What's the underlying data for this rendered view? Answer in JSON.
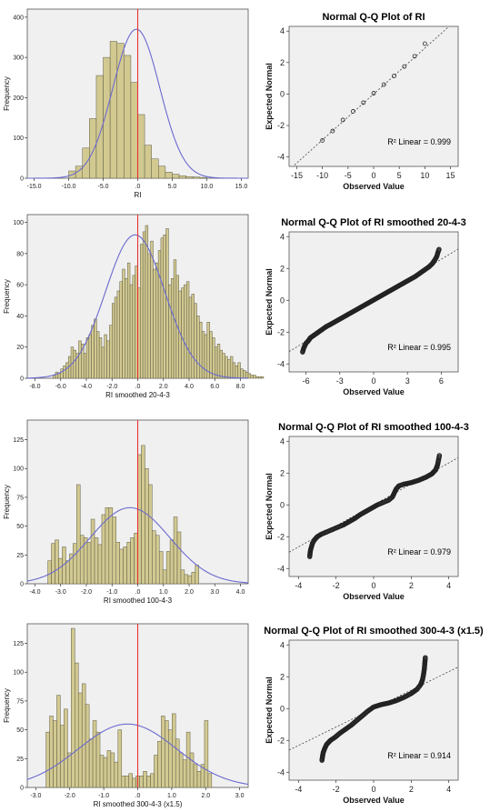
{
  "colors": {
    "plot_bg": "#f0f0f0",
    "bar_fill": "#d2c991",
    "bar_stroke": "#5d5a45",
    "normal_curve": "#6a6ad0",
    "mean_line": "#e83030",
    "qq_point": "#222222",
    "ref_line": "#444444"
  },
  "chart_data": [
    {
      "type": "bar",
      "subtype": "histogram",
      "xlabel": "RI",
      "ylabel": "Frequency",
      "xlim": [
        -16,
        16
      ],
      "ylim": [
        0,
        420
      ],
      "xticks": [
        -15,
        -10,
        -5,
        0,
        5,
        10,
        15
      ],
      "xtick_labels": [
        "-15.0",
        "-10.0",
        "-5.0",
        ".0",
        "5.0",
        "10.0",
        "15.0"
      ],
      "yticks": [
        0,
        100,
        200,
        300,
        400
      ],
      "ytick_labels": [
        "0",
        "100",
        "200",
        "300",
        "400"
      ],
      "bin_start": -10,
      "bin_width": 1,
      "values": [
        18,
        30,
        75,
        148,
        255,
        300,
        340,
        335,
        305,
        238,
        158,
        82,
        48,
        30,
        15,
        10,
        6,
        4,
        3,
        2
      ],
      "normal_curve": {
        "mean": -0.2,
        "sd": 3.4,
        "peak": 370
      },
      "mean_line": 0
    },
    {
      "type": "bar",
      "subtype": "histogram",
      "xlabel": "RI smoothed 20-4-3",
      "ylabel": "Frequency",
      "xlim": [
        -8.6,
        8.6
      ],
      "ylim": [
        0,
        105
      ],
      "xticks": [
        -8,
        -6,
        -4,
        -2,
        0,
        2,
        4,
        6,
        8
      ],
      "xtick_labels": [
        "-8.0",
        "-6.0",
        "-4.0",
        "-2.0",
        ".0",
        "2.0",
        "4.0",
        "6.0",
        "8.0"
      ],
      "yticks": [
        0,
        20,
        40,
        60,
        80,
        100
      ],
      "ytick_labels": [
        "0",
        "20",
        "40",
        "60",
        "80",
        "100"
      ],
      "bin_start": -6.6,
      "bin_width": 0.2,
      "values": [
        2,
        4,
        3,
        6,
        8,
        10,
        14,
        20,
        18,
        16,
        24,
        22,
        16,
        26,
        28,
        34,
        38,
        30,
        26,
        20,
        28,
        24,
        34,
        48,
        52,
        56,
        62,
        70,
        64,
        74,
        60,
        66,
        72,
        58,
        86,
        94,
        98,
        80,
        88,
        70,
        74,
        82,
        90,
        92,
        96,
        60,
        64,
        76,
        66,
        56,
        58,
        60,
        62,
        52,
        54,
        48,
        40,
        36,
        30,
        28,
        36,
        30,
        26,
        20,
        22,
        18,
        16,
        14,
        12,
        14,
        10,
        8,
        10,
        6,
        5,
        4,
        3,
        2,
        2,
        1,
        1,
        1
      ],
      "normal_curve": {
        "mean": -0.2,
        "sd": 2.3,
        "peak": 92
      },
      "mean_line": 0
    },
    {
      "type": "bar",
      "subtype": "histogram",
      "xlabel": "RI smoothed 100-4-3",
      "ylabel": "Frequency",
      "xlim": [
        -4.3,
        4.3
      ],
      "ylim": [
        0,
        142
      ],
      "xticks": [
        -4,
        -3,
        -2,
        -1,
        0,
        1,
        2,
        3,
        4
      ],
      "xtick_labels": [
        "-4.0",
        "-3.0",
        "-2.0",
        "-1.0",
        ".0",
        "1.0",
        "2.0",
        "3.0",
        "4.0"
      ],
      "yticks": [
        0,
        25,
        50,
        75,
        100,
        125
      ],
      "ytick_labels": [
        "0",
        "25",
        "50",
        "75",
        "100",
        "125"
      ],
      "bin_start": -3.5,
      "bin_width": 0.14,
      "values": [
        20,
        35,
        38,
        22,
        32,
        20,
        26,
        35,
        86,
        42,
        40,
        36,
        56,
        40,
        34,
        60,
        66,
        66,
        58,
        36,
        30,
        32,
        36,
        40,
        44,
        112,
        120,
        100,
        86,
        46,
        42,
        28,
        12,
        28,
        38,
        58,
        45,
        12,
        8,
        7,
        10,
        16
      ],
      "normal_curve": {
        "mean": -0.3,
        "sd": 1.55,
        "peak": 66
      },
      "mean_line": 0
    },
    {
      "type": "bar",
      "subtype": "histogram",
      "xlabel": "RI smoothed 300-4-3 (x1.5)",
      "ylabel": "Frequency",
      "xlim": [
        -3.25,
        3.25
      ],
      "ylim": [
        0,
        142
      ],
      "xticks": [
        -3,
        -2,
        -1,
        0,
        1,
        2,
        3
      ],
      "xtick_labels": [
        "-3.0",
        "-2.0",
        "-1.0",
        ".0",
        "1.0",
        "2.0",
        "3.0"
      ],
      "yticks": [
        0,
        25,
        50,
        75,
        100,
        125
      ],
      "ytick_labels": [
        "0",
        "25",
        "50",
        "75",
        "100",
        "125"
      ],
      "bin_start": -2.7,
      "bin_width": 0.106,
      "values": [
        48,
        62,
        58,
        80,
        54,
        68,
        30,
        138,
        108,
        82,
        90,
        72,
        42,
        58,
        48,
        28,
        26,
        32,
        30,
        22,
        50,
        10,
        10,
        12,
        8,
        10,
        10,
        14,
        10,
        12,
        28,
        40,
        62,
        58,
        50,
        64,
        42,
        30,
        24,
        48,
        30,
        20,
        14,
        20,
        58,
        12
      ],
      "normal_curve": {
        "mean": -0.3,
        "sd": 1.45,
        "peak": 55
      },
      "mean_line": 0
    },
    {
      "type": "scatter",
      "subtype": "qq-plot",
      "title": "Normal Q-Q Plot of RI",
      "xlabel": "Observed Value",
      "ylabel": "Expected Normal",
      "xlim": [
        -16.5,
        16.5
      ],
      "ylim": [
        -4.6,
        4.3
      ],
      "xticks": [
        -15,
        -10,
        -5,
        0,
        5,
        10,
        15
      ],
      "xtick_labels": [
        "-15",
        "-10",
        "-5",
        "0",
        "5",
        "10",
        "15"
      ],
      "yticks": [
        -4,
        -2,
        0,
        2,
        4
      ],
      "ytick_labels": [
        "-4",
        "-2",
        "0",
        "2",
        "4"
      ],
      "r2_label": "R² Linear = 0.999",
      "ref_line": {
        "slope": 0.292,
        "intercept": 0.0
      },
      "points": [
        [
          -10,
          -2.95
        ],
        [
          -8,
          -2.35
        ],
        [
          -6,
          -1.65
        ],
        [
          -4,
          -1.1
        ],
        [
          -2,
          -0.55
        ],
        [
          0,
          0.05
        ],
        [
          2,
          0.6
        ],
        [
          4,
          1.15
        ],
        [
          6,
          1.75
        ],
        [
          8,
          2.4
        ],
        [
          10,
          3.2
        ]
      ]
    },
    {
      "type": "scatter",
      "subtype": "qq-plot",
      "title": "Normal Q-Q Plot of RI smoothed 20-4-3",
      "xlabel": "Observed Value",
      "ylabel": "Expected Normal",
      "xlim": [
        -7.5,
        7.5
      ],
      "ylim": [
        -4.5,
        4.3
      ],
      "xticks": [
        -6,
        -3,
        0,
        3,
        6
      ],
      "xtick_labels": [
        "-6",
        "-3",
        "0",
        "3",
        "6"
      ],
      "yticks": [
        -4,
        -2,
        0,
        2,
        4
      ],
      "ytick_labels": [
        "-4",
        "-2",
        "0",
        "2",
        "4"
      ],
      "r2_label": "R² Linear = 0.995",
      "ref_line": {
        "slope": 0.43,
        "intercept": 0.0
      },
      "points": [
        [
          -6.3,
          -3.25
        ],
        [
          -6.2,
          -3.0
        ],
        [
          -6.1,
          -2.85
        ],
        [
          -6.0,
          -2.7
        ],
        [
          -5.8,
          -2.55
        ],
        [
          -5.6,
          -2.35
        ],
        [
          -5.3,
          -2.2
        ],
        [
          -5.0,
          -2.05
        ],
        [
          -4.6,
          -1.85
        ],
        [
          -4.2,
          -1.65
        ],
        [
          -3.8,
          -1.5
        ],
        [
          -3.3,
          -1.3
        ],
        [
          -2.8,
          -1.1
        ],
        [
          -2.3,
          -0.9
        ],
        [
          -1.8,
          -0.7
        ],
        [
          -1.3,
          -0.5
        ],
        [
          -0.8,
          -0.3
        ],
        [
          -0.3,
          -0.1
        ],
        [
          0.2,
          0.1
        ],
        [
          0.7,
          0.3
        ],
        [
          1.2,
          0.5
        ],
        [
          1.7,
          0.7
        ],
        [
          2.2,
          0.9
        ],
        [
          2.7,
          1.1
        ],
        [
          3.2,
          1.3
        ],
        [
          3.7,
          1.5
        ],
        [
          4.1,
          1.7
        ],
        [
          4.5,
          1.9
        ],
        [
          4.9,
          2.1
        ],
        [
          5.2,
          2.3
        ],
        [
          5.4,
          2.5
        ],
        [
          5.6,
          2.75
        ],
        [
          5.7,
          3.0
        ],
        [
          5.8,
          3.2
        ]
      ]
    },
    {
      "type": "scatter",
      "subtype": "qq-plot",
      "title": "Normal Q-Q Plot of RI smoothed 100-4-3",
      "xlabel": "Observed Value",
      "ylabel": "Expected Normal",
      "xlim": [
        -4.5,
        4.5
      ],
      "ylim": [
        -4.5,
        4.3
      ],
      "xticks": [
        -4,
        -2,
        0,
        2,
        4
      ],
      "xtick_labels": [
        "-4",
        "-2",
        "0",
        "2",
        "4"
      ],
      "yticks": [
        -4,
        -2,
        0,
        2,
        4
      ],
      "ytick_labels": [
        "-4",
        "-2",
        "0",
        "2",
        "4"
      ],
      "r2_label": "R² Linear = 0.979",
      "ref_line": {
        "slope": 0.66,
        "intercept": 0.0
      },
      "points": [
        [
          -3.4,
          -3.25
        ],
        [
          -3.38,
          -3.0
        ],
        [
          -3.35,
          -2.8
        ],
        [
          -3.3,
          -2.6
        ],
        [
          -3.25,
          -2.4
        ],
        [
          -3.15,
          -2.2
        ],
        [
          -3.0,
          -2.0
        ],
        [
          -2.8,
          -1.85
        ],
        [
          -2.5,
          -1.7
        ],
        [
          -2.2,
          -1.55
        ],
        [
          -1.9,
          -1.4
        ],
        [
          -1.6,
          -1.25
        ],
        [
          -1.3,
          -1.05
        ],
        [
          -1.0,
          -0.85
        ],
        [
          -0.7,
          -0.6
        ],
        [
          -0.4,
          -0.4
        ],
        [
          -0.1,
          -0.2
        ],
        [
          0.2,
          0.0
        ],
        [
          0.5,
          0.15
        ],
        [
          0.8,
          0.3
        ],
        [
          1.0,
          0.5
        ],
        [
          1.1,
          0.75
        ],
        [
          1.2,
          1.0
        ],
        [
          1.35,
          1.2
        ],
        [
          1.6,
          1.3
        ],
        [
          2.0,
          1.4
        ],
        [
          2.4,
          1.55
        ],
        [
          2.8,
          1.75
        ],
        [
          3.1,
          1.95
        ],
        [
          3.3,
          2.2
        ],
        [
          3.4,
          2.5
        ],
        [
          3.45,
          2.8
        ],
        [
          3.5,
          3.1
        ]
      ]
    },
    {
      "type": "scatter",
      "subtype": "qq-plot",
      "title": "Normal Q-Q Plot of RI smoothed 300-4-3 (x1.5)",
      "xlabel": "Observed Value",
      "ylabel": "Expected Normal",
      "xlim": [
        -4.5,
        4.5
      ],
      "ylim": [
        -4.5,
        4.3
      ],
      "xticks": [
        -4,
        -2,
        0,
        2,
        4
      ],
      "xtick_labels": [
        "-4",
        "-2",
        "0",
        "2",
        "4"
      ],
      "yticks": [
        -4,
        -2,
        0,
        2,
        4
      ],
      "ytick_labels": [
        "-4",
        "-2",
        "0",
        "2",
        "4"
      ],
      "r2_label": "R² Linear = 0.914",
      "ref_line": {
        "slope": 0.58,
        "intercept": 0.0
      },
      "points": [
        [
          -2.75,
          -3.25
        ],
        [
          -2.72,
          -3.0
        ],
        [
          -2.68,
          -2.75
        ],
        [
          -2.6,
          -2.5
        ],
        [
          -2.5,
          -2.25
        ],
        [
          -2.3,
          -2.0
        ],
        [
          -2.05,
          -1.8
        ],
        [
          -1.8,
          -1.55
        ],
        [
          -1.5,
          -1.3
        ],
        [
          -1.2,
          -1.05
        ],
        [
          -0.9,
          -0.75
        ],
        [
          -0.6,
          -0.45
        ],
        [
          -0.3,
          -0.15
        ],
        [
          0.0,
          0.1
        ],
        [
          0.4,
          0.25
        ],
        [
          0.8,
          0.35
        ],
        [
          1.2,
          0.5
        ],
        [
          1.6,
          0.7
        ],
        [
          2.0,
          0.95
        ],
        [
          2.3,
          1.2
        ],
        [
          2.5,
          1.5
        ],
        [
          2.6,
          1.8
        ],
        [
          2.65,
          2.1
        ],
        [
          2.7,
          2.5
        ],
        [
          2.72,
          2.8
        ],
        [
          2.75,
          3.2
        ]
      ]
    }
  ]
}
